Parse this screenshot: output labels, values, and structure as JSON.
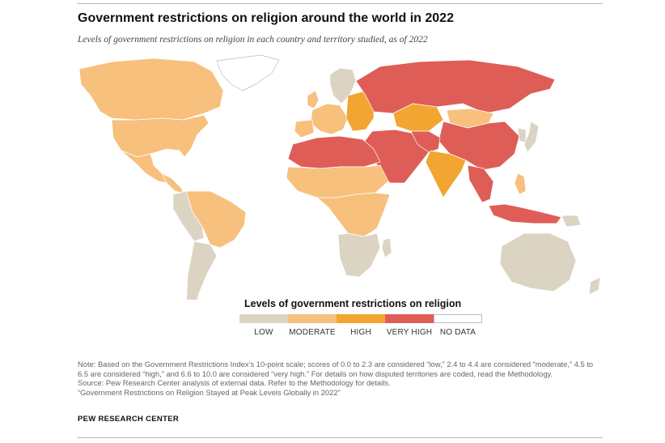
{
  "title": "Government restrictions on religion around the world in 2022",
  "subtitle": "Levels of government restrictions on religion in each country and territory studied, as of 2022",
  "legend": {
    "title": "Levels of government restrictions on religion",
    "items": [
      {
        "label": "LOW",
        "color": "#dbd4c2"
      },
      {
        "label": "MODERATE",
        "color": "#f7c07d"
      },
      {
        "label": "HIGH",
        "color": "#f2a531"
      },
      {
        "label": "VERY HIGH",
        "color": "#df5d57"
      },
      {
        "label": "NO DATA",
        "color": "#ffffff"
      }
    ]
  },
  "notes": [
    "Note: Based on the Government Restrictions Index’s 10-point scale; scores of 0.0 to 2.3 are considered “low,” 2.4 to 4.4 are considered “moderate,” 4.5 to 6.5 are considered “high,” and 6.6 to 10.0 are considered “very high.” For details on how disputed territories are coded, read the Methodology.",
    "Source: Pew Research Center analysis of external data. Refer to the Methodology for details.",
    "“Government Restrictions on Religion Stayed at Peak Levels Globally in 2022”"
  ],
  "brand": "PEW RESEARCH CENTER",
  "map_regions": [
    {
      "name": "greenland",
      "level": "NO DATA"
    },
    {
      "name": "canada",
      "level": "MODERATE"
    },
    {
      "name": "united-states",
      "level": "MODERATE"
    },
    {
      "name": "mexico",
      "level": "MODERATE"
    },
    {
      "name": "central-america",
      "level": "MODERATE"
    },
    {
      "name": "brazil",
      "level": "MODERATE"
    },
    {
      "name": "andean-south-america",
      "level": "LOW"
    },
    {
      "name": "southern-cone",
      "level": "LOW"
    },
    {
      "name": "scandinavia",
      "level": "LOW"
    },
    {
      "name": "western-europe",
      "level": "MODERATE"
    },
    {
      "name": "eastern-europe",
      "level": "HIGH"
    },
    {
      "name": "russia",
      "level": "VERY HIGH"
    },
    {
      "name": "kazakhstan",
      "level": "HIGH"
    },
    {
      "name": "mongolia",
      "level": "MODERATE"
    },
    {
      "name": "china",
      "level": "VERY HIGH"
    },
    {
      "name": "middle-east",
      "level": "VERY HIGH"
    },
    {
      "name": "india",
      "level": "HIGH"
    },
    {
      "name": "southeast-asia",
      "level": "VERY HIGH"
    },
    {
      "name": "indonesia",
      "level": "VERY HIGH"
    },
    {
      "name": "north-africa",
      "level": "VERY HIGH"
    },
    {
      "name": "sahel",
      "level": "MODERATE"
    },
    {
      "name": "central-africa",
      "level": "MODERATE"
    },
    {
      "name": "southern-africa",
      "level": "LOW"
    },
    {
      "name": "australia",
      "level": "LOW"
    },
    {
      "name": "japan",
      "level": "LOW"
    }
  ]
}
